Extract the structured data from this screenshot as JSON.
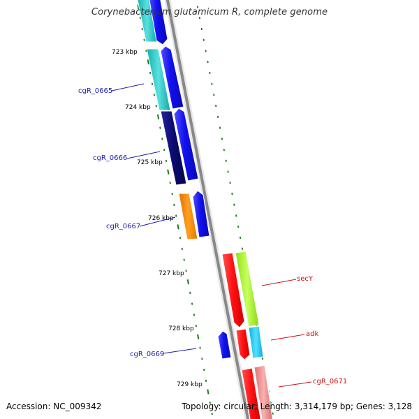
{
  "title": "Corynebacterium glutamicum R, complete genome",
  "footer": {
    "accession": "Accession: NC_009342",
    "topology": "Topology: circular; Length: 3,314,179 bp; Genes: 3,128"
  },
  "ticks": [
    "723 kbp",
    "724 kbp",
    "725 kbp",
    "726 kbp",
    "727 kbp",
    "728 kbp",
    "729 kbp"
  ],
  "gene_labels": {
    "cgR_0665": "cgR_0665",
    "cgR_0666": "cgR_0666",
    "cgR_0667": "cgR_0667",
    "cgR_0669": "cgR_0669",
    "secY": "secY",
    "adk": "adk",
    "cgR_0671": "cgR_0671"
  },
  "colors": {
    "backbone": "#888888",
    "tick": "#1a7a1a",
    "forward_label": "#1b1bb0",
    "reverse_label": "#cc1111",
    "blue": "#1010e8",
    "navy": "#0a0a70",
    "cyan": "#22c8c8",
    "orange": "#ff9000",
    "red": "#ff1010",
    "lime": "#a8f030",
    "sky": "#20c8f0",
    "pink": "#f09090"
  }
}
